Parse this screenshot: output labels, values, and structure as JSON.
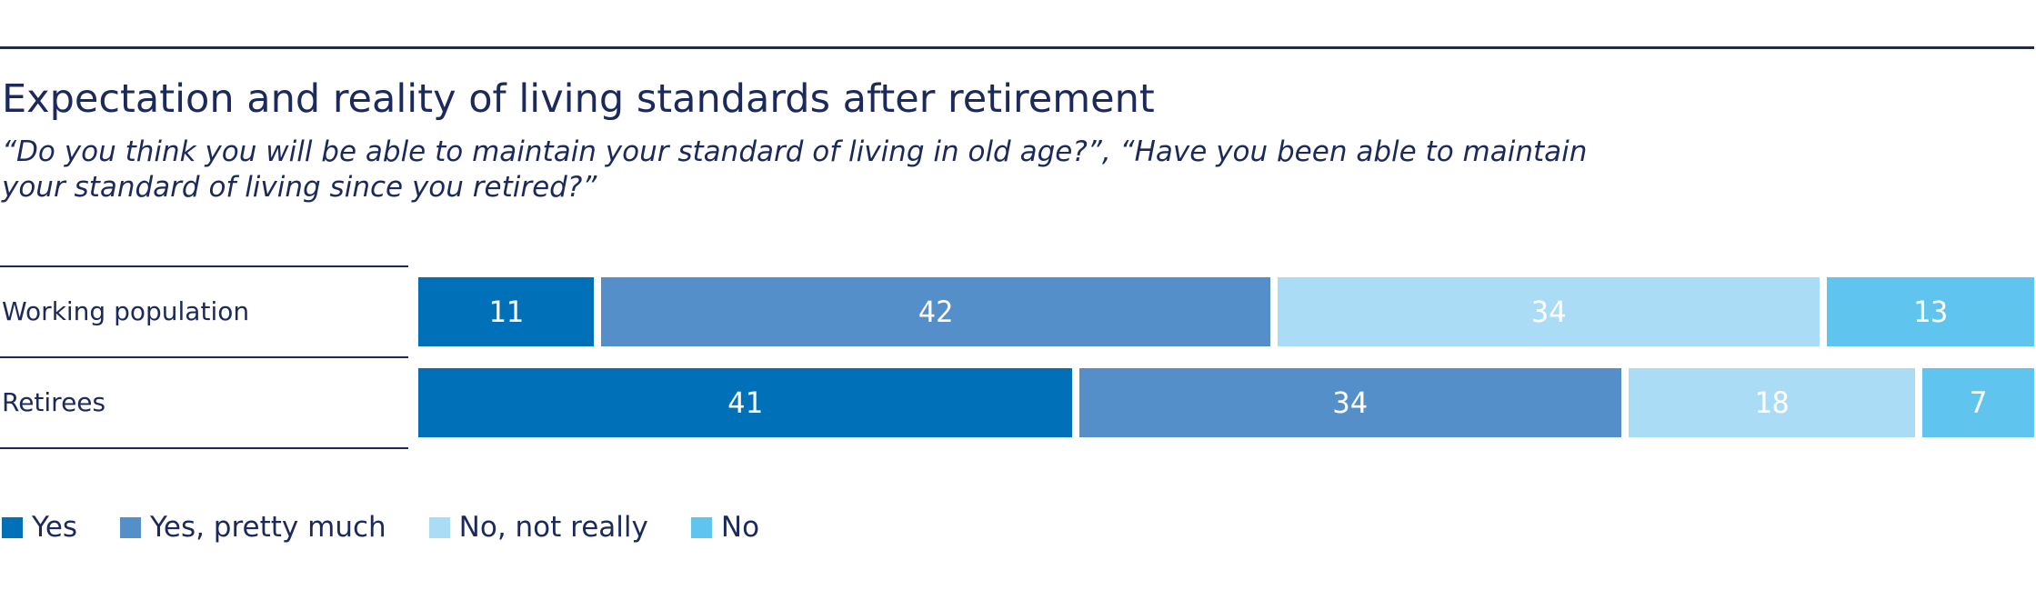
{
  "chart_data": {
    "type": "bar",
    "orientation": "horizontal",
    "stacked": true,
    "title": "Expectation and reality of living standards after retirement",
    "subtitle": "“Do you think you will be able to maintain your standard of living in old age?”, “Have you been able to maintain your standard of living since you retired?”",
    "categories": [
      "Working population",
      "Retirees"
    ],
    "series": [
      {
        "name": "Yes",
        "color": "#0070b8",
        "values": [
          11,
          41
        ]
      },
      {
        "name": "Yes, pretty much",
        "color": "#558fc9",
        "values": [
          42,
          34
        ]
      },
      {
        "name": "No, not really",
        "color": "#abdcf6",
        "values": [
          34,
          18
        ]
      },
      {
        "name": "No",
        "color": "#5fc5ee",
        "values": [
          13,
          7
        ]
      }
    ],
    "xlim": [
      0,
      100
    ],
    "grid": false,
    "legend_position": "bottom-left"
  }
}
